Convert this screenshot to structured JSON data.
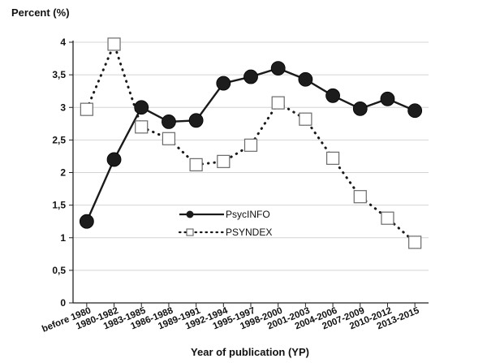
{
  "chart_data": {
    "type": "line",
    "title": "",
    "ylabel": "Percent (%)",
    "xlabel": "Year of publication (YP)",
    "ylim": [
      0,
      4
    ],
    "yticks": [
      0,
      0.5,
      1,
      1.5,
      2,
      2.5,
      3,
      3.5,
      4
    ],
    "ytick_labels": [
      "0",
      "0,5",
      "1",
      "1,5",
      "2",
      "2,5",
      "3",
      "3,5",
      "4"
    ],
    "grid": "horizontal",
    "legend_position": "center",
    "categories": [
      "before 1980",
      "1980-1982",
      "1983-1985",
      "1986-1988",
      "1989-1991",
      "1992-1994",
      "1995-1997",
      "1998-2000",
      "2001-2003",
      "2004-2006",
      "2007-2009",
      "2010-2012",
      "2013-2015"
    ],
    "series": [
      {
        "name": "PsycINFO",
        "line_style": "solid",
        "marker": "filled-circle",
        "color": "#1a1a1a",
        "values": [
          1.25,
          2.2,
          3.0,
          2.78,
          2.8,
          3.37,
          3.47,
          3.6,
          3.43,
          3.18,
          2.98,
          3.13,
          2.95
        ]
      },
      {
        "name": "PSYNDEX",
        "line_style": "dotted",
        "marker": "open-square",
        "color": "#1a1a1a",
        "values": [
          2.97,
          3.97,
          2.7,
          2.52,
          2.12,
          2.17,
          2.42,
          3.07,
          2.82,
          2.22,
          1.63,
          1.3,
          0.93
        ]
      }
    ]
  }
}
